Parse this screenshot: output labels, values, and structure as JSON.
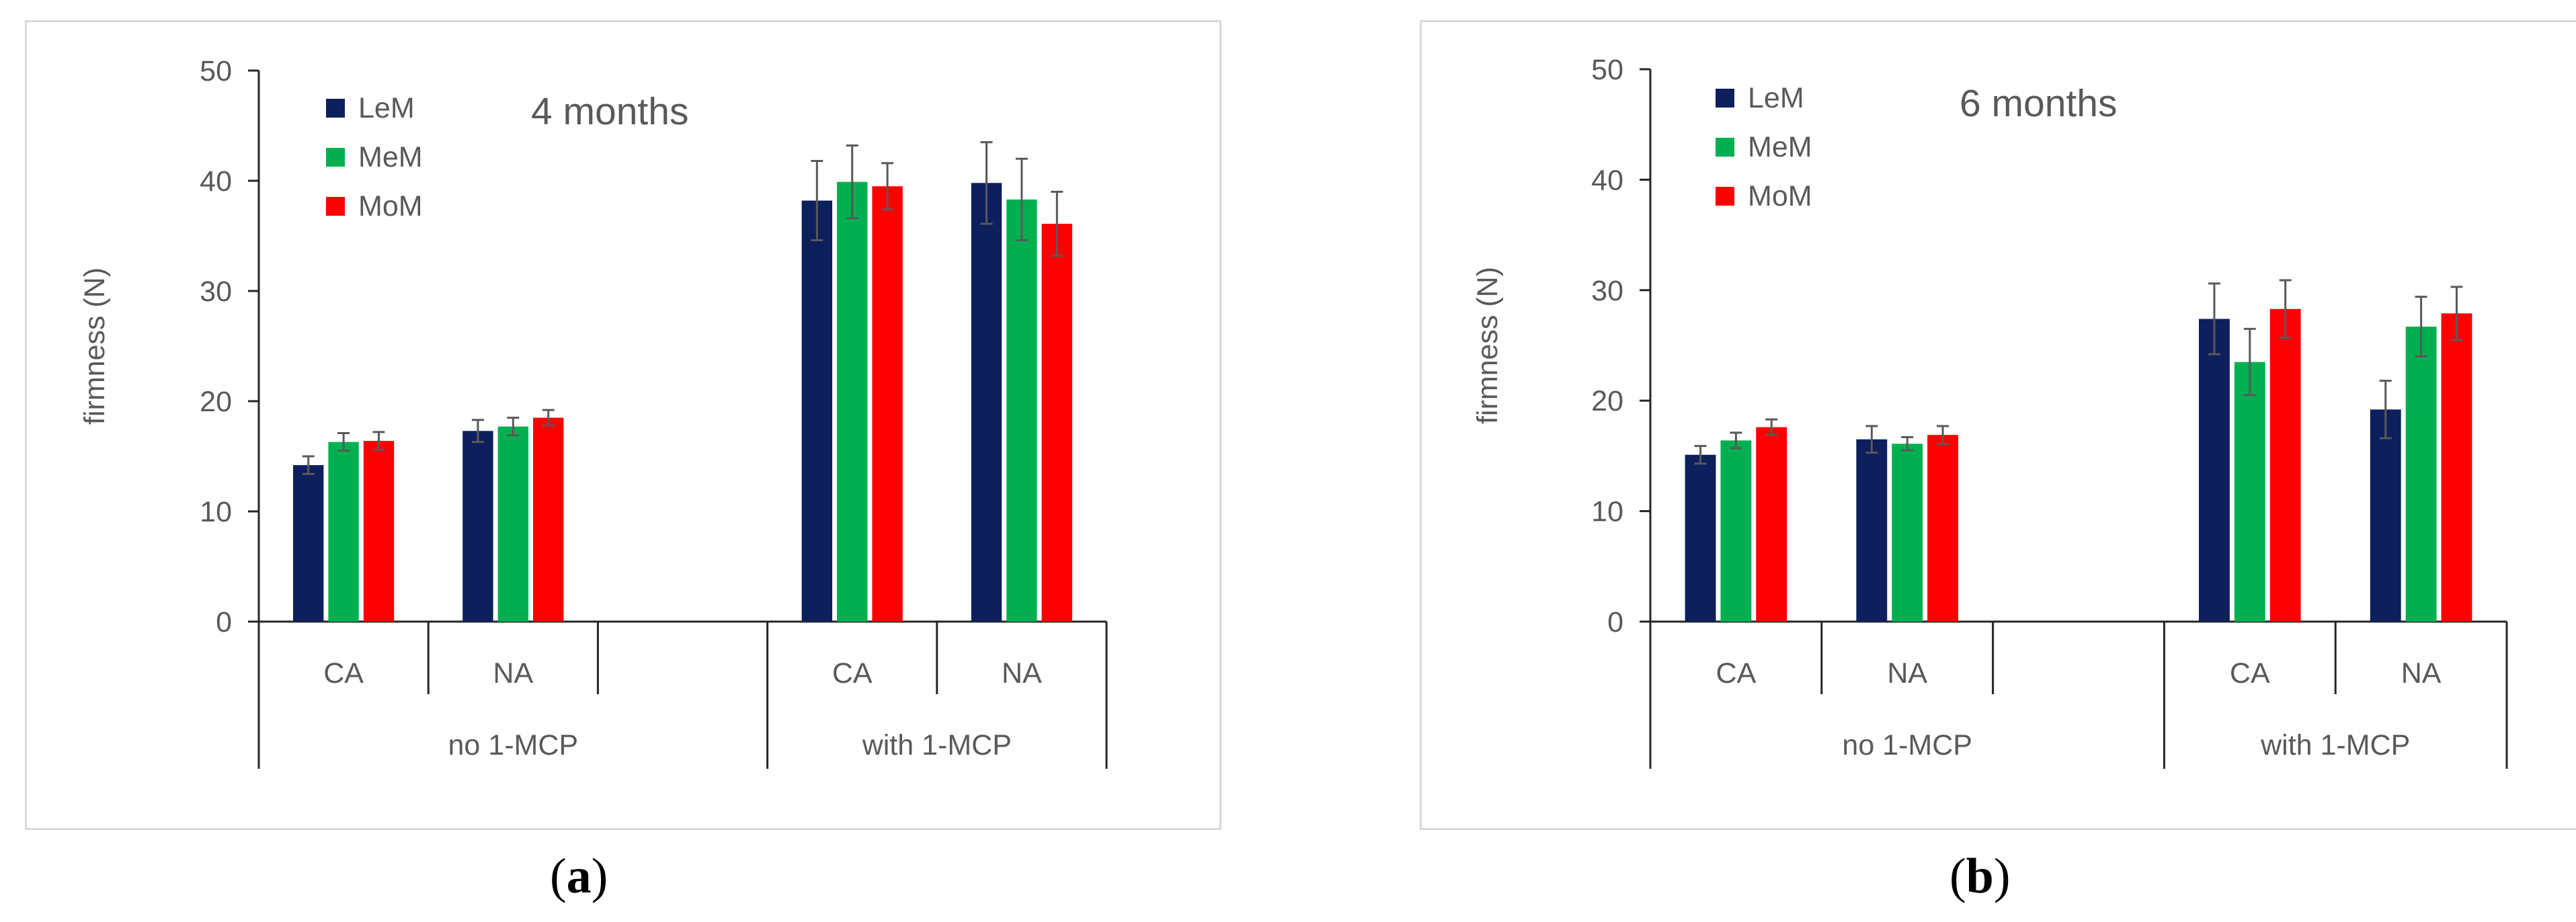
{
  "chart_data": [
    {
      "type": "bar",
      "title": "4 months",
      "ylabel": "firmness (N)",
      "xlabel": "",
      "ylim": [
        0,
        50
      ],
      "yticks": [
        0,
        10,
        20,
        30,
        40,
        50
      ],
      "categories": [
        "CA",
        "NA",
        "",
        "CA",
        "NA"
      ],
      "groups": [
        {
          "label": "no 1-MCP",
          "span": [
            0,
            2
          ]
        },
        {
          "label": "with 1-MCP",
          "span": [
            3,
            4
          ]
        }
      ],
      "series": [
        {
          "name": "LeM",
          "color": "#0d1f5c",
          "values": [
            14.2,
            17.3,
            null,
            38.2,
            39.8
          ],
          "errors": [
            0.8,
            1.0,
            null,
            3.6,
            3.7
          ]
        },
        {
          "name": "MeM",
          "color": "#00b050",
          "values": [
            16.3,
            17.7,
            null,
            39.9,
            38.3
          ],
          "errors": [
            0.8,
            0.8,
            null,
            3.3,
            3.7
          ]
        },
        {
          "name": "MoM",
          "color": "#ff0000",
          "values": [
            16.4,
            18.5,
            null,
            39.5,
            36.1
          ],
          "errors": [
            0.8,
            0.7,
            null,
            2.1,
            2.9
          ]
        }
      ],
      "legend_position": "top-left",
      "caption_letter": "a"
    },
    {
      "type": "bar",
      "title": "6 months",
      "ylabel": "firmness (N)",
      "xlabel": "",
      "ylim": [
        0,
        50
      ],
      "yticks": [
        0,
        10,
        20,
        30,
        40,
        50
      ],
      "categories": [
        "CA",
        "NA",
        "",
        "CA",
        "NA"
      ],
      "groups": [
        {
          "label": "no 1-MCP",
          "span": [
            0,
            2
          ]
        },
        {
          "label": "with 1-MCP",
          "span": [
            3,
            4
          ]
        }
      ],
      "series": [
        {
          "name": "LeM",
          "color": "#0d1f5c",
          "values": [
            15.1,
            16.5,
            null,
            27.4,
            19.2
          ],
          "errors": [
            0.8,
            1.2,
            null,
            3.2,
            2.6
          ]
        },
        {
          "name": "MeM",
          "color": "#00b050",
          "values": [
            16.4,
            16.1,
            null,
            23.5,
            26.7
          ],
          "errors": [
            0.7,
            0.6,
            null,
            3.0,
            2.7
          ]
        },
        {
          "name": "MoM",
          "color": "#ff0000",
          "values": [
            17.6,
            16.9,
            null,
            28.3,
            27.9
          ],
          "errors": [
            0.7,
            0.8,
            null,
            2.6,
            2.4
          ]
        }
      ],
      "legend_position": "top-left",
      "caption_letter": "b"
    }
  ]
}
